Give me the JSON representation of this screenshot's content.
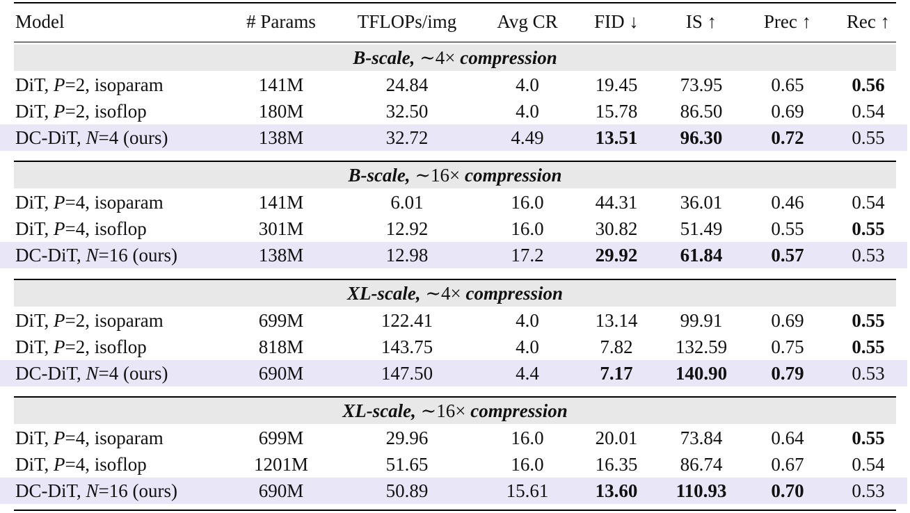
{
  "headers": {
    "model": "Model",
    "params": "# Params",
    "tflops": "TFLOPs/img",
    "avg_cr": "Avg CR",
    "fid": "FID ↓",
    "is": "IS ↑",
    "prec": "Prec ↑",
    "rec": "Rec ↑"
  },
  "sections": [
    {
      "title_scale": "B-scale,",
      "title_ratio": "∼4×",
      "title_word": "compression",
      "rows": [
        {
          "model_prefix": "DiT, ",
          "var": "P",
          "eq": "=2",
          "suffix": ", isoparam",
          "params": "141M",
          "tflops": "24.84",
          "avg_cr": "4.0",
          "fid": "19.45",
          "is": "73.95",
          "prec": "0.65",
          "rec": "0.56",
          "bold": [
            "rec"
          ],
          "ours": false
        },
        {
          "model_prefix": "DiT, ",
          "var": "P",
          "eq": "=2",
          "suffix": ", isoflop",
          "params": "180M",
          "tflops": "32.50",
          "avg_cr": "4.0",
          "fid": "15.78",
          "is": "86.50",
          "prec": "0.69",
          "rec": "0.54",
          "bold": [],
          "ours": false
        },
        {
          "model_prefix": "DC-DiT, ",
          "var": "N",
          "eq": "=4",
          "suffix": " (ours)",
          "params": "138M",
          "tflops": "32.72",
          "avg_cr": "4.49",
          "fid": "13.51",
          "is": "96.30",
          "prec": "0.72",
          "rec": "0.55",
          "bold": [
            "fid",
            "is",
            "prec"
          ],
          "ours": true
        }
      ]
    },
    {
      "title_scale": "B-scale,",
      "title_ratio": "∼16×",
      "title_word": "compression",
      "rows": [
        {
          "model_prefix": "DiT, ",
          "var": "P",
          "eq": "=4",
          "suffix": ", isoparam",
          "params": "141M",
          "tflops": "6.01",
          "avg_cr": "16.0",
          "fid": "44.31",
          "is": "36.01",
          "prec": "0.46",
          "rec": "0.54",
          "bold": [],
          "ours": false
        },
        {
          "model_prefix": "DiT, ",
          "var": "P",
          "eq": "=4",
          "suffix": ", isoflop",
          "params": "301M",
          "tflops": "12.92",
          "avg_cr": "16.0",
          "fid": "30.82",
          "is": "51.49",
          "prec": "0.55",
          "rec": "0.55",
          "bold": [
            "rec"
          ],
          "ours": false
        },
        {
          "model_prefix": "DC-DiT, ",
          "var": "N",
          "eq": "=16",
          "suffix": " (ours)",
          "params": "138M",
          "tflops": "12.98",
          "avg_cr": "17.2",
          "fid": "29.92",
          "is": "61.84",
          "prec": "0.57",
          "rec": "0.53",
          "bold": [
            "fid",
            "is",
            "prec"
          ],
          "ours": true
        }
      ]
    },
    {
      "title_scale": "XL-scale,",
      "title_ratio": "∼4×",
      "title_word": "compression",
      "rows": [
        {
          "model_prefix": "DiT, ",
          "var": "P",
          "eq": "=2",
          "suffix": ", isoparam",
          "params": "699M",
          "tflops": "122.41",
          "avg_cr": "4.0",
          "fid": "13.14",
          "is": "99.91",
          "prec": "0.69",
          "rec": "0.55",
          "bold": [
            "rec"
          ],
          "ours": false
        },
        {
          "model_prefix": "DiT, ",
          "var": "P",
          "eq": "=2",
          "suffix": ", isoflop",
          "params": "818M",
          "tflops": "143.75",
          "avg_cr": "4.0",
          "fid": "7.82",
          "is": "132.59",
          "prec": "0.75",
          "rec": "0.55",
          "bold": [
            "rec"
          ],
          "ours": false
        },
        {
          "model_prefix": "DC-DiT, ",
          "var": "N",
          "eq": "=4",
          "suffix": " (ours)",
          "params": "690M",
          "tflops": "147.50",
          "avg_cr": "4.4",
          "fid": "7.17",
          "is": "140.90",
          "prec": "0.79",
          "rec": "0.53",
          "bold": [
            "fid",
            "is",
            "prec"
          ],
          "ours": true
        }
      ]
    },
    {
      "title_scale": "XL-scale,",
      "title_ratio": "∼16×",
      "title_word": "compression",
      "rows": [
        {
          "model_prefix": "DiT, ",
          "var": "P",
          "eq": "=4",
          "suffix": ", isoparam",
          "params": "699M",
          "tflops": "29.96",
          "avg_cr": "16.0",
          "fid": "20.01",
          "is": "73.84",
          "prec": "0.64",
          "rec": "0.55",
          "bold": [
            "rec"
          ],
          "ours": false
        },
        {
          "model_prefix": "DiT, ",
          "var": "P",
          "eq": "=4",
          "suffix": ", isoflop",
          "params": "1201M",
          "tflops": "51.65",
          "avg_cr": "16.0",
          "fid": "16.35",
          "is": "86.74",
          "prec": "0.67",
          "rec": "0.54",
          "bold": [],
          "ours": false
        },
        {
          "model_prefix": "DC-DiT, ",
          "var": "N",
          "eq": "=16",
          "suffix": " (ours)",
          "params": "690M",
          "tflops": "50.89",
          "avg_cr": "15.61",
          "fid": "13.60",
          "is": "110.93",
          "prec": "0.70",
          "rec": "0.53",
          "bold": [
            "fid",
            "is",
            "prec"
          ],
          "ours": true
        }
      ]
    }
  ]
}
